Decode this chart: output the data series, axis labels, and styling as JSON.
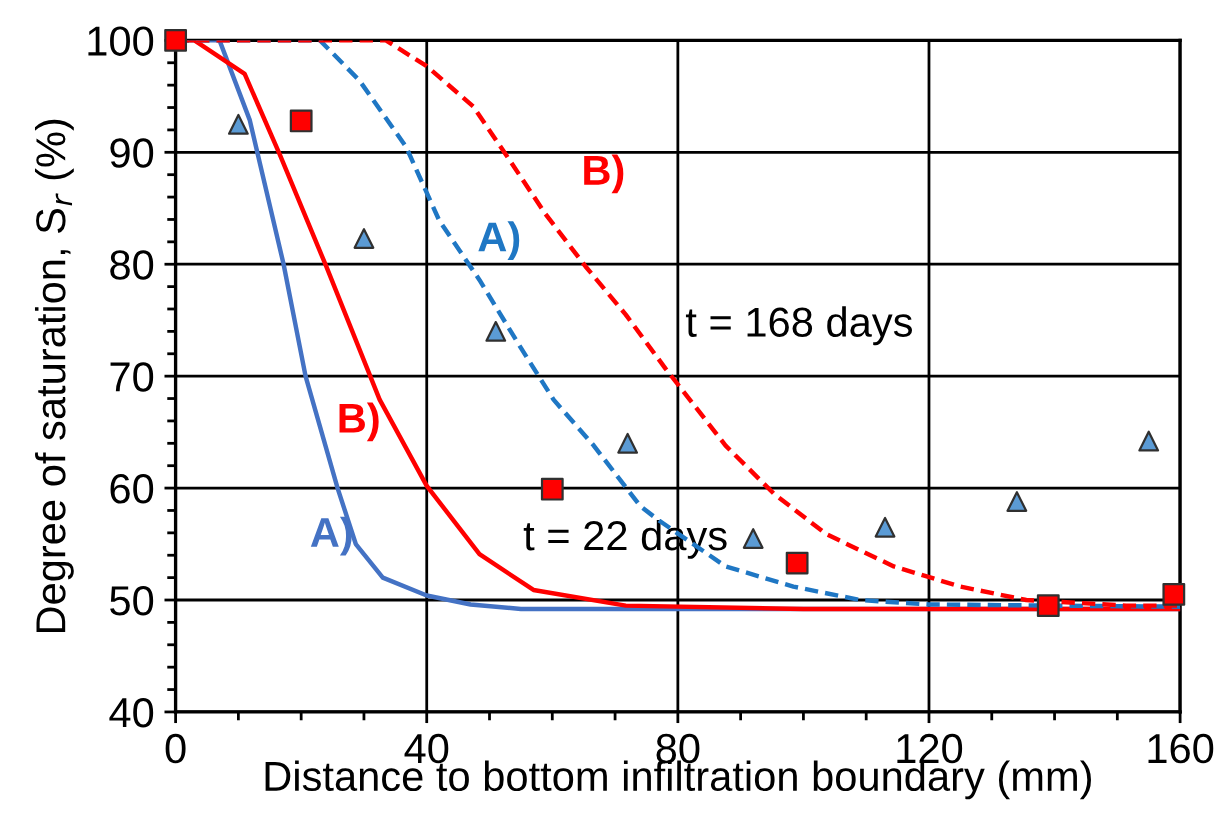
{
  "chart_data": {
    "type": "line",
    "xlabel": "Distance to bottom infiltration boundary (mm)",
    "ylabel": "Degree of saturation, S$_{r}$ (%)",
    "xlim": [
      0,
      160
    ],
    "xticks": [
      0,
      40,
      80,
      120,
      160
    ],
    "ylim": [
      40,
      100
    ],
    "yticks": [
      40,
      50,
      60,
      70,
      80,
      90,
      100
    ],
    "grid": true,
    "legend": false,
    "series": [
      {
        "color": "#4472c4",
        "line_style": "solid",
        "marker": "none",
        "x": [
          0,
          7,
          11.8,
          17.2,
          20.7,
          25.8,
          28.7,
          33,
          40,
          47,
          55,
          70,
          100,
          160
        ],
        "values": [
          100,
          100,
          92.9,
          80,
          70,
          60,
          55,
          52,
          50.4,
          49.6,
          49.2,
          49.2,
          49.2,
          49.2
        ]
      },
      {
        "color": "#ff0000",
        "line_style": "solid",
        "marker": "none",
        "x": [
          0,
          3,
          11,
          16.6,
          24,
          32.5,
          40,
          48.4,
          57,
          71.7,
          100,
          160
        ],
        "values": [
          100,
          100,
          97,
          89.8,
          79.8,
          67.9,
          60.2,
          54.1,
          50.9,
          49.5,
          49.2,
          49.2
        ]
      },
      {
        "color": "#1f77c4",
        "line_style": "dashed",
        "marker": "none",
        "x": [
          0,
          23,
          29.3,
          36.7,
          42,
          48.4,
          54.8,
          60.2,
          66.6,
          74,
          77,
          87.6,
          98.4,
          109,
          120,
          160
        ],
        "values": [
          100,
          100,
          96.4,
          90.5,
          83.9,
          78.6,
          72.7,
          67.9,
          63.8,
          58.4,
          57.1,
          53,
          51.2,
          50,
          49.6,
          49.4
        ]
      },
      {
        "color": "#ff0000",
        "line_style": "dashed",
        "marker": "none",
        "x": [
          0,
          33.5,
          40,
          47.4,
          52.6,
          58.9,
          65.3,
          71.7,
          78,
          87.6,
          95.3,
          103.6,
          114.4,
          125,
          135.5,
          151.4,
          160
        ],
        "values": [
          100,
          100,
          97.7,
          94.1,
          89.8,
          84.5,
          79.8,
          75.5,
          70.7,
          63.8,
          59.5,
          55.9,
          53,
          51.2,
          50,
          49.5,
          49.5
        ]
      },
      {
        "type": "scatter",
        "color": "#5b9bd5",
        "marker": "triangle",
        "x": [
          10,
          30,
          51,
          72,
          92,
          113,
          134,
          155
        ],
        "values": [
          92.5,
          82.3,
          74,
          64,
          55.5,
          56.5,
          58.8,
          64.2
        ]
      },
      {
        "type": "scatter",
        "color": "#ff0000",
        "marker": "square",
        "x": [
          0,
          20,
          60,
          99,
          139,
          159
        ],
        "values": [
          100,
          92.8,
          59.9,
          53.3,
          49.5,
          50.5
        ]
      }
    ],
    "annotations": [
      {
        "text": "A)",
        "x": 42,
        "y": 83.9
      },
      {
        "text": "B)",
        "x": 58.9,
        "y": 84.5
      },
      "t = 168 days",
      {
        "text": "B)",
        "x": 40,
        "y": 60.2
      },
      {
        "text": "A)",
        "x": 28.7,
        "y": 55
      },
      "t = 22 days"
    ]
  }
}
